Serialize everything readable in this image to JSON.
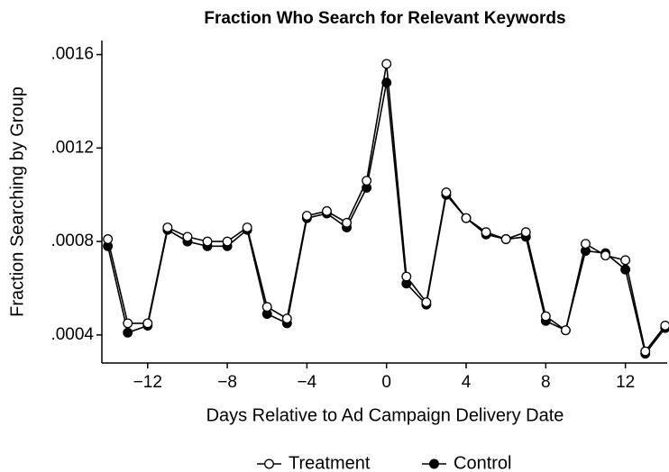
{
  "chart_data": {
    "type": "line",
    "title": "Fraction Who Search for Relevant Keywords",
    "x_label": "Days Relative to Ad Campaign Delivery Date",
    "y_label": "Fraction Searching by Group",
    "x": [
      -14,
      -13,
      -12,
      -11,
      -10,
      -9,
      -8,
      -7,
      -6,
      -5,
      -4,
      -3,
      -2,
      -1,
      0,
      1,
      2,
      3,
      4,
      5,
      6,
      7,
      8,
      9,
      10,
      11,
      12,
      13,
      14
    ],
    "series": [
      {
        "name": "Treatment",
        "color": "#000000",
        "marker": "open",
        "values": [
          0.00081,
          0.00045,
          0.00045,
          0.00086,
          0.00082,
          0.0008,
          0.0008,
          0.00086,
          0.00052,
          0.00047,
          0.00091,
          0.00093,
          0.00088,
          0.00106,
          0.00156,
          0.00065,
          0.00054,
          0.00101,
          0.0009,
          0.00084,
          0.00081,
          0.00084,
          0.00048,
          0.00042,
          0.00079,
          0.00074,
          0.00072,
          0.00033,
          0.00044
        ]
      },
      {
        "name": "Control",
        "color": "#000000",
        "marker": "filled",
        "values": [
          0.00078,
          0.00041,
          0.00044,
          0.00085,
          0.0008,
          0.00078,
          0.00078,
          0.00085,
          0.00049,
          0.00045,
          0.0009,
          0.00092,
          0.00086,
          0.00103,
          0.00148,
          0.00062,
          0.00053,
          0.001,
          0.0009,
          0.00083,
          0.00081,
          0.00082,
          0.00046,
          0.00042,
          0.00076,
          0.00075,
          0.00068,
          0.00032,
          0.00043
        ]
      }
    ],
    "xlim": [
      -14.3,
      14.1
    ],
    "xticks": [
      {
        "value": -12,
        "label": "−12"
      },
      {
        "value": -8,
        "label": "−8"
      },
      {
        "value": -4,
        "label": "−4"
      },
      0,
      4,
      8,
      12
    ],
    "ylim": [
      0.00028,
      0.00166
    ],
    "yticks": [
      {
        "value": 0.0004,
        "label": ".0004"
      },
      {
        "value": 0.0008,
        "label": ".0008"
      },
      {
        "value": 0.0012,
        "label": ".0012"
      },
      {
        "value": 0.0016,
        "label": ".0016"
      }
    ],
    "legend": "bottom"
  }
}
